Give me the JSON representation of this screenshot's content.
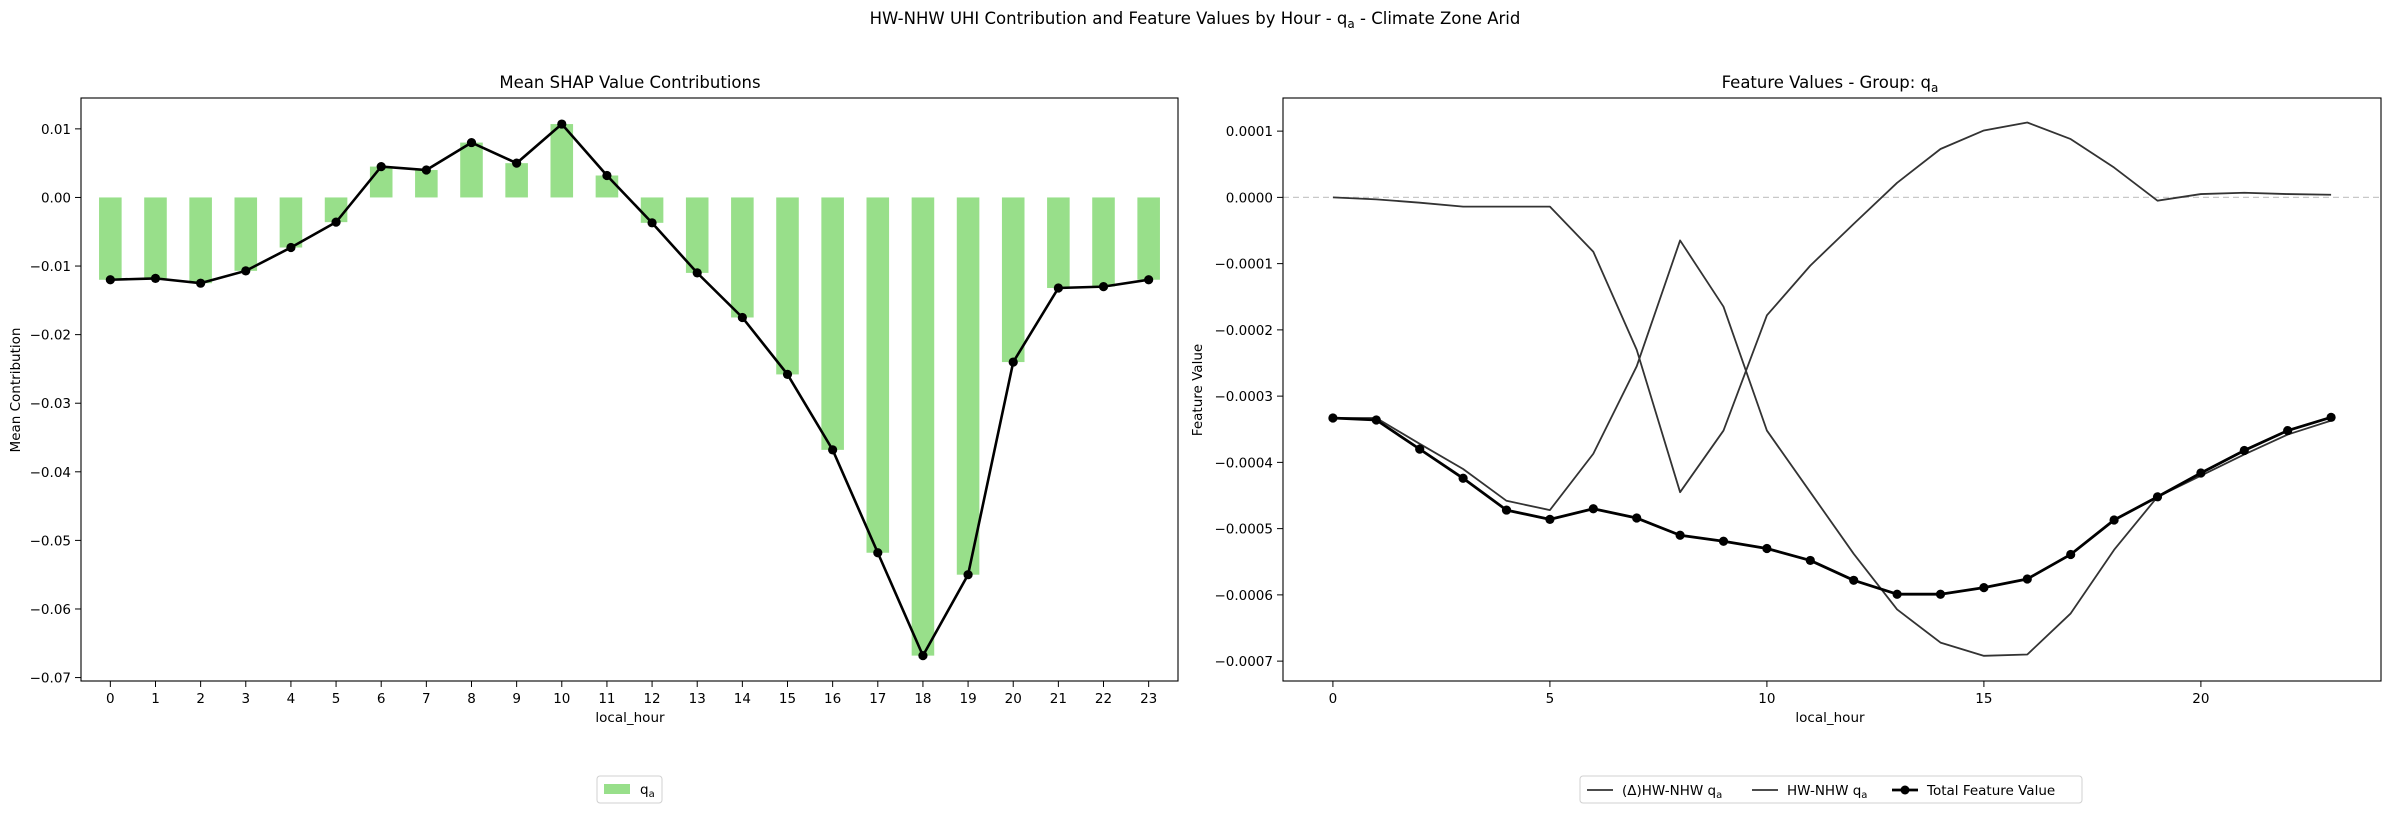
{
  "suptitle": {
    "main": "HW-NHW UHI Contribution and Feature Values by Hour - q",
    "sub": "a",
    "tail": " - Climate Zone Arid"
  },
  "chart_data": [
    {
      "type": "bar",
      "title": "Mean SHAP Value Contributions",
      "xlabel": "local_hour",
      "ylabel": "Mean Contribution",
      "categories": [
        "0",
        "1",
        "2",
        "3",
        "4",
        "5",
        "6",
        "7",
        "8",
        "9",
        "10",
        "11",
        "12",
        "13",
        "14",
        "15",
        "16",
        "17",
        "18",
        "19",
        "20",
        "21",
        "22",
        "23"
      ],
      "ylim": [
        -0.0705,
        0.0145
      ],
      "yticks": [
        0.01,
        0.0,
        -0.01,
        -0.02,
        -0.03,
        -0.04,
        -0.05,
        -0.06,
        -0.07
      ],
      "ytick_labels": [
        "0.01",
        "0.00",
        "−0.01",
        "−0.02",
        "−0.03",
        "−0.04",
        "−0.05",
        "−0.06",
        "−0.07"
      ],
      "grid": false,
      "series": [
        {
          "name": "q",
          "name_sub": "a",
          "kind": "bar",
          "color": "#98df8a",
          "values": [
            -0.012,
            -0.0118,
            -0.0125,
            -0.0107,
            -0.0073,
            -0.0036,
            0.0045,
            0.004,
            0.008,
            0.005,
            0.0107,
            0.0032,
            -0.0037,
            -0.011,
            -0.0175,
            -0.0258,
            -0.0368,
            -0.0518,
            -0.0668,
            -0.055,
            -0.024,
            -0.0132,
            -0.013,
            -0.012
          ]
        },
        {
          "kind": "line",
          "color": "#000000",
          "values": [
            -0.012,
            -0.0118,
            -0.0125,
            -0.0107,
            -0.0073,
            -0.0036,
            0.0045,
            0.004,
            0.008,
            0.005,
            0.0107,
            0.0032,
            -0.0037,
            -0.011,
            -0.0175,
            -0.0258,
            -0.0368,
            -0.0518,
            -0.0668,
            -0.055,
            -0.024,
            -0.0132,
            -0.013,
            -0.012
          ]
        }
      ],
      "legend": {
        "placement": "bottom-center",
        "entries": [
          {
            "label": "q",
            "sub": "a"
          }
        ]
      }
    },
    {
      "type": "line",
      "title": "Feature Values - Group: q",
      "title_sub": "a",
      "xlabel": "local_hour",
      "ylabel": "Feature Value",
      "xlim": [
        -1.15,
        24.15
      ],
      "ylim": [
        -0.00073,
        0.00015
      ],
      "xticks": [
        0,
        5,
        10,
        15,
        20
      ],
      "xtick_labels": [
        "0",
        "5",
        "10",
        "15",
        "20"
      ],
      "yticks": [
        0.0001,
        0.0,
        -0.0001,
        -0.0002,
        -0.0003,
        -0.0004,
        -0.0005,
        -0.0006,
        -0.0007
      ],
      "ytick_labels": [
        "0.0001",
        "0.0000",
        "−0.0001",
        "−0.0002",
        "−0.0003",
        "−0.0004",
        "−0.0005",
        "−0.0006",
        "−0.0007"
      ],
      "reference_line": {
        "y": 0.0,
        "style": "dashed",
        "color": "#c8c8c8"
      },
      "grid": false,
      "x": [
        0,
        1,
        2,
        3,
        4,
        5,
        6,
        7,
        8,
        9,
        10,
        11,
        12,
        13,
        14,
        15,
        16,
        17,
        18,
        19,
        20,
        21,
        22,
        23
      ],
      "series": [
        {
          "name": "(Δ)HW-NHW q",
          "name_sub": "a",
          "color": "#333333",
          "width": 1.8,
          "markers": false,
          "values": [
            0.0,
            -3e-06,
            -8e-06,
            -1.4e-05,
            -1.4e-05,
            -1.4e-05,
            -8.2e-05,
            -0.00023,
            -0.000445,
            -0.000352,
            -0.000178,
            -0.000103,
            -4e-05,
            2.2e-05,
            7.3e-05,
            0.000101,
            0.000113,
            8.8e-05,
            4.5e-05,
            -5e-06,
            5e-06,
            7e-06,
            5e-06,
            4e-06
          ]
        },
        {
          "name": "HW-NHW q",
          "name_sub": "a",
          "color": "#333333",
          "width": 1.8,
          "markers": false,
          "values": [
            -0.000333,
            -0.000333,
            -0.000372,
            -0.00041,
            -0.000458,
            -0.000472,
            -0.000387,
            -0.000255,
            -6.5e-05,
            -0.000165,
            -0.000352,
            -0.000445,
            -0.000538,
            -0.000622,
            -0.000672,
            -0.000692,
            -0.00069,
            -0.000628,
            -0.000532,
            -0.000452,
            -0.00042,
            -0.000388,
            -0.000358,
            -0.000337
          ]
        },
        {
          "name": "Total Feature Value",
          "color": "#000000",
          "width": 2.8,
          "markers": true,
          "values": [
            -0.000333,
            -0.000336,
            -0.00038,
            -0.000424,
            -0.000472,
            -0.000486,
            -0.00047,
            -0.000484,
            -0.00051,
            -0.000519,
            -0.00053,
            -0.000548,
            -0.000578,
            -0.000599,
            -0.000599,
            -0.000589,
            -0.000576,
            -0.000539,
            -0.000487,
            -0.000452,
            -0.000416,
            -0.000382,
            -0.000352,
            -0.000332
          ]
        }
      ],
      "legend": {
        "placement": "bottom-center"
      }
    }
  ]
}
